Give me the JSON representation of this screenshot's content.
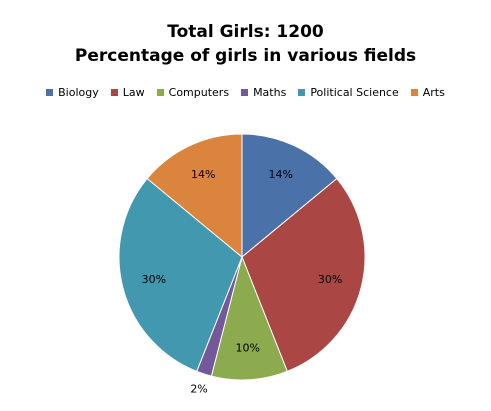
{
  "chart_data": {
    "type": "pie",
    "title": "Total Girls: 1200",
    "subtitle": "Percentage of girls in various fields",
    "legend_position": "top",
    "categories": [
      "Biology",
      "Law",
      "Computers",
      "Maths",
      "Political Science",
      "Arts"
    ],
    "values": [
      14,
      30,
      10,
      2,
      30,
      14
    ],
    "value_labels": [
      "14%",
      "30%",
      "10%",
      "2%",
      "30%",
      "14%"
    ],
    "colors": [
      "#4A71A8",
      "#AA4644",
      "#8CAA4E",
      "#73599A",
      "#4198AF",
      "#DB843D"
    ]
  }
}
